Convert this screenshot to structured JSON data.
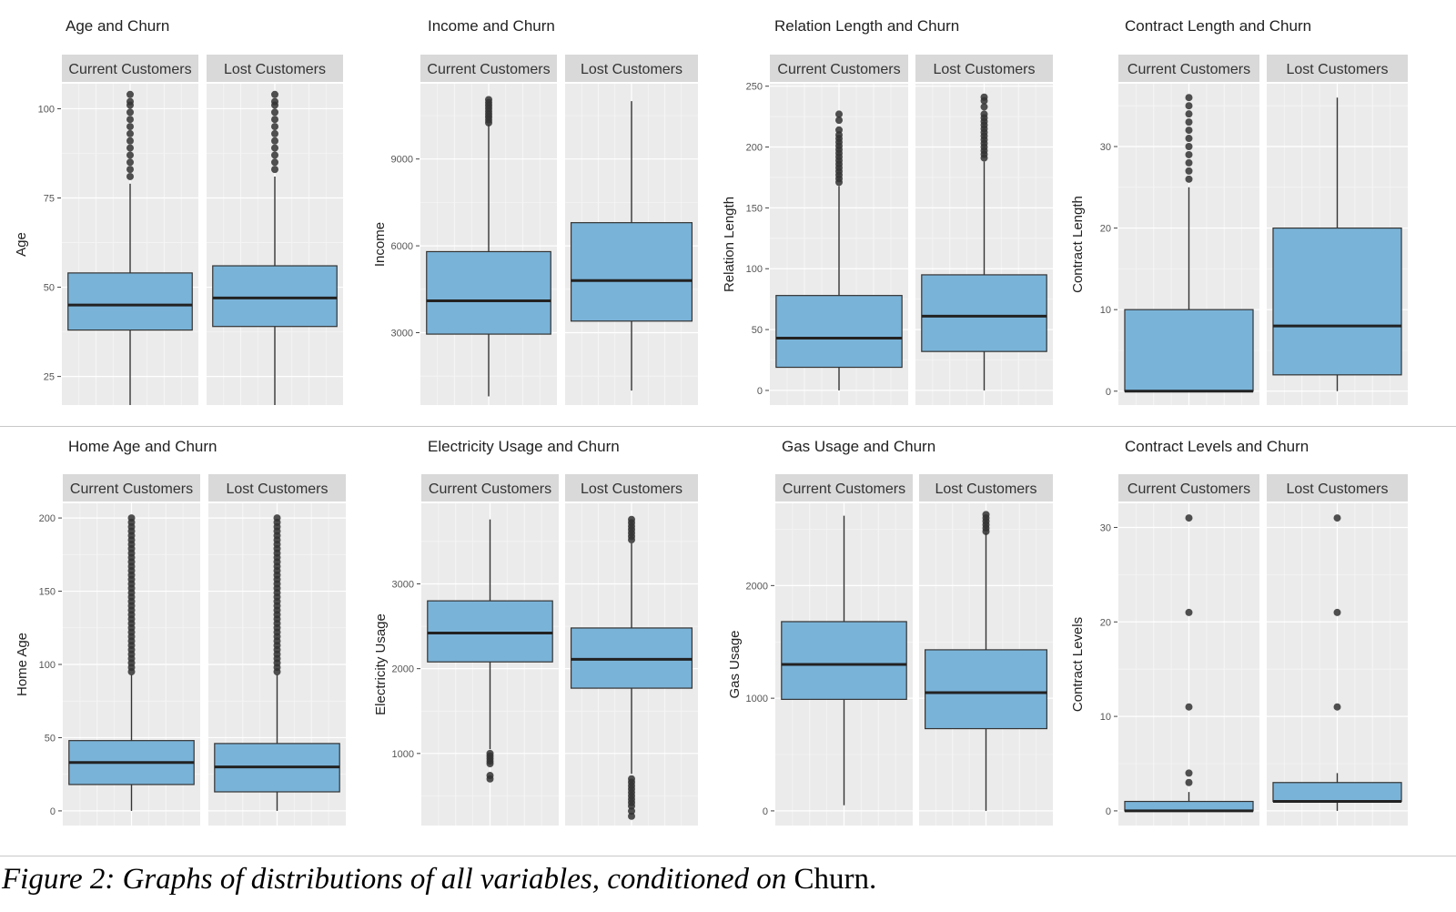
{
  "caption": {
    "italic": "Figure 2: Graphs of distributions of all variables, conditioned on",
    "plain": "Churn."
  },
  "chart_data": [
    {
      "type": "box",
      "title": "Age and Churn",
      "ylabel": "Age",
      "ylim": [
        17,
        107
      ],
      "yticks": [
        25,
        50,
        75,
        100
      ],
      "facets": [
        {
          "label": "Current Customers",
          "whisker_low": 17,
          "q1": 38,
          "median": 45,
          "q3": 54,
          "whisker_high": 79,
          "outliers": [
            81,
            83,
            85,
            87,
            89,
            91,
            93,
            95,
            97,
            99,
            101,
            102,
            104
          ]
        },
        {
          "label": "Lost Customers",
          "whisker_low": 17,
          "q1": 39,
          "median": 47,
          "q3": 56,
          "whisker_high": 81,
          "outliers": [
            83,
            85,
            87,
            89,
            91,
            93,
            95,
            97,
            99,
            101,
            102,
            104
          ]
        }
      ]
    },
    {
      "type": "box",
      "title": "Income and Churn",
      "ylabel": "Income",
      "ylim": [
        500,
        11600
      ],
      "yticks": [
        3000,
        6000,
        9000
      ],
      "facets": [
        {
          "label": "Current Customers",
          "whisker_low": 800,
          "q1": 2950,
          "median": 4100,
          "q3": 5800,
          "whisker_high": 10200,
          "outliers": [
            10250,
            10350,
            10450,
            10550,
            10650,
            10750,
            10850,
            10950,
            11050
          ]
        },
        {
          "label": "Lost Customers",
          "whisker_low": 1000,
          "q1": 3400,
          "median": 4800,
          "q3": 6800,
          "whisker_high": 11000,
          "outliers": []
        }
      ]
    },
    {
      "type": "box",
      "title": "Relation Length and Churn",
      "ylabel": "Relation Length",
      "ylim": [
        -12,
        252
      ],
      "yticks": [
        0,
        50,
        100,
        150,
        200,
        250
      ],
      "facets": [
        {
          "label": "Current Customers",
          "whisker_low": 0,
          "q1": 19,
          "median": 43,
          "q3": 78,
          "whisker_high": 168,
          "outliers": [
            171,
            174,
            177,
            180,
            183,
            186,
            189,
            192,
            195,
            198,
            201,
            204,
            207,
            210,
            214,
            222,
            227
          ]
        },
        {
          "label": "Lost Customers",
          "whisker_low": 0,
          "q1": 32,
          "median": 61,
          "q3": 95,
          "whisker_high": 188,
          "outliers": [
            191,
            194,
            197,
            200,
            203,
            206,
            209,
            212,
            215,
            218,
            221,
            224,
            227,
            233,
            238,
            241
          ]
        }
      ]
    },
    {
      "type": "box",
      "title": "Contract Length and Churn",
      "ylabel": "Contract Length",
      "ylim": [
        -1.7,
        37.7
      ],
      "yticks": [
        0,
        10,
        20,
        30
      ],
      "facets": [
        {
          "label": "Current Customers",
          "whisker_low": 0,
          "q1": 0,
          "median": 0,
          "q3": 10,
          "whisker_high": 25,
          "outliers": [
            26,
            27,
            28,
            29,
            30,
            31,
            32,
            33,
            34,
            35,
            36
          ]
        },
        {
          "label": "Lost Customers",
          "whisker_low": 0,
          "q1": 2,
          "median": 8,
          "q3": 20,
          "whisker_high": 36,
          "outliers": []
        }
      ]
    },
    {
      "type": "box",
      "title": "Home Age and Churn",
      "ylabel": "Home Age",
      "ylim": [
        -10,
        210
      ],
      "yticks": [
        0,
        50,
        100,
        150,
        200
      ],
      "facets": [
        {
          "label": "Current Customers",
          "whisker_low": 0,
          "q1": 18,
          "median": 33,
          "q3": 48,
          "whisker_high": 93,
          "outliers": [
            95,
            98,
            101,
            104,
            107,
            110,
            113,
            116,
            119,
            122,
            125,
            128,
            131,
            134,
            137,
            140,
            143,
            146,
            149,
            152,
            155,
            158,
            161,
            164,
            167,
            170,
            173,
            176,
            179,
            182,
            185,
            188,
            191,
            194,
            197,
            200
          ]
        },
        {
          "label": "Lost Customers",
          "whisker_low": 0,
          "q1": 13,
          "median": 30,
          "q3": 46,
          "whisker_high": 93,
          "outliers": [
            95,
            98,
            101,
            104,
            107,
            110,
            113,
            116,
            119,
            122,
            125,
            128,
            131,
            134,
            137,
            140,
            143,
            146,
            149,
            152,
            155,
            158,
            161,
            164,
            167,
            170,
            173,
            176,
            179,
            182,
            185,
            188,
            191,
            194,
            197,
            200
          ]
        }
      ]
    },
    {
      "type": "box",
      "title": "Electricity Usage and Churn",
      "ylabel": "Electricity Usage",
      "ylim": [
        150,
        3950
      ],
      "yticks": [
        1000,
        2000,
        3000
      ],
      "facets": [
        {
          "label": "Current Customers",
          "whisker_low": 1050,
          "q1": 2080,
          "median": 2420,
          "q3": 2800,
          "whisker_high": 3760,
          "outliers": [
            700,
            740,
            880,
            910,
            940,
            970,
            1000
          ]
        },
        {
          "label": "Lost Customers",
          "whisker_low": 760,
          "q1": 1770,
          "median": 2110,
          "q3": 2480,
          "whisker_high": 3480,
          "outliers": [
            260,
            320,
            380,
            420,
            460,
            500,
            540,
            580,
            620,
            660,
            700,
            3520,
            3560,
            3600,
            3640,
            3680,
            3720,
            3760
          ]
        }
      ]
    },
    {
      "type": "box",
      "title": "Gas Usage and Churn",
      "ylabel": "Gas Usage",
      "ylim": [
        -130,
        2730
      ],
      "yticks": [
        0,
        1000,
        2000
      ],
      "facets": [
        {
          "label": "Current Customers",
          "whisker_low": 50,
          "q1": 990,
          "median": 1300,
          "q3": 1680,
          "whisker_high": 2620,
          "outliers": []
        },
        {
          "label": "Lost Customers",
          "whisker_low": 0,
          "q1": 730,
          "median": 1050,
          "q3": 1430,
          "whisker_high": 2470,
          "outliers": [
            2480,
            2510,
            2540,
            2570,
            2600,
            2630
          ]
        }
      ]
    },
    {
      "type": "box",
      "title": "Contract Levels and Churn",
      "ylabel": "Contract Levels",
      "ylim": [
        -1.55,
        32.55
      ],
      "yticks": [
        0,
        10,
        20,
        30
      ],
      "facets": [
        {
          "label": "Current Customers",
          "whisker_low": 0,
          "q1": 0,
          "median": 0,
          "q3": 1,
          "whisker_high": 2,
          "outliers": [
            3,
            4,
            11,
            21,
            31
          ]
        },
        {
          "label": "Lost Customers",
          "whisker_low": 0,
          "q1": 1,
          "median": 1,
          "q3": 3,
          "whisker_high": 4,
          "outliers": [
            11,
            21,
            31
          ]
        }
      ]
    }
  ]
}
